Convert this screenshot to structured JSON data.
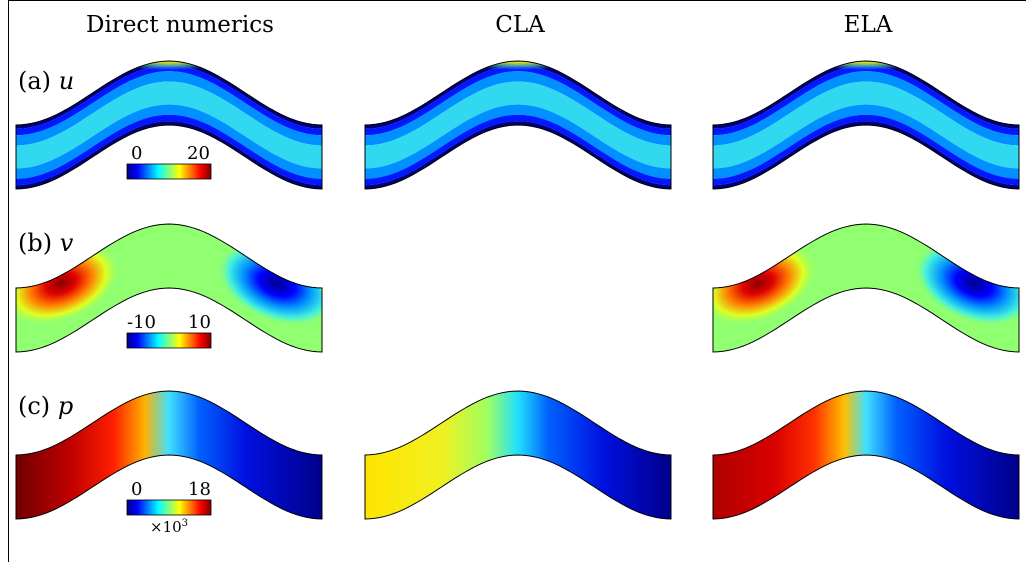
{
  "columns": [
    "Direct numerics",
    "CLA",
    "ELA"
  ],
  "rows": [
    {
      "label_prefix": "(a)",
      "variable": "u",
      "colorbar": {
        "min": "0",
        "max": "20",
        "multiplier": ""
      }
    },
    {
      "label_prefix": "(b)",
      "variable": "v",
      "colorbar": {
        "min": "-10",
        "max": "10",
        "multiplier": ""
      }
    },
    {
      "label_prefix": "(c)",
      "variable": "p",
      "colorbar": {
        "min": "0",
        "max": "18",
        "multiplier": "×10",
        "multiplier_exp": "3"
      }
    }
  ],
  "colormap": "jet",
  "panels_present": [
    [
      true,
      true,
      true
    ],
    [
      true,
      false,
      true
    ],
    [
      true,
      true,
      true
    ]
  ],
  "field_pattern": {
    "u": "streamwise velocity: high along channel crest, low at walls",
    "v": "positive on rising slope, negative on falling slope",
    "p": "decreasing from left to right"
  }
}
